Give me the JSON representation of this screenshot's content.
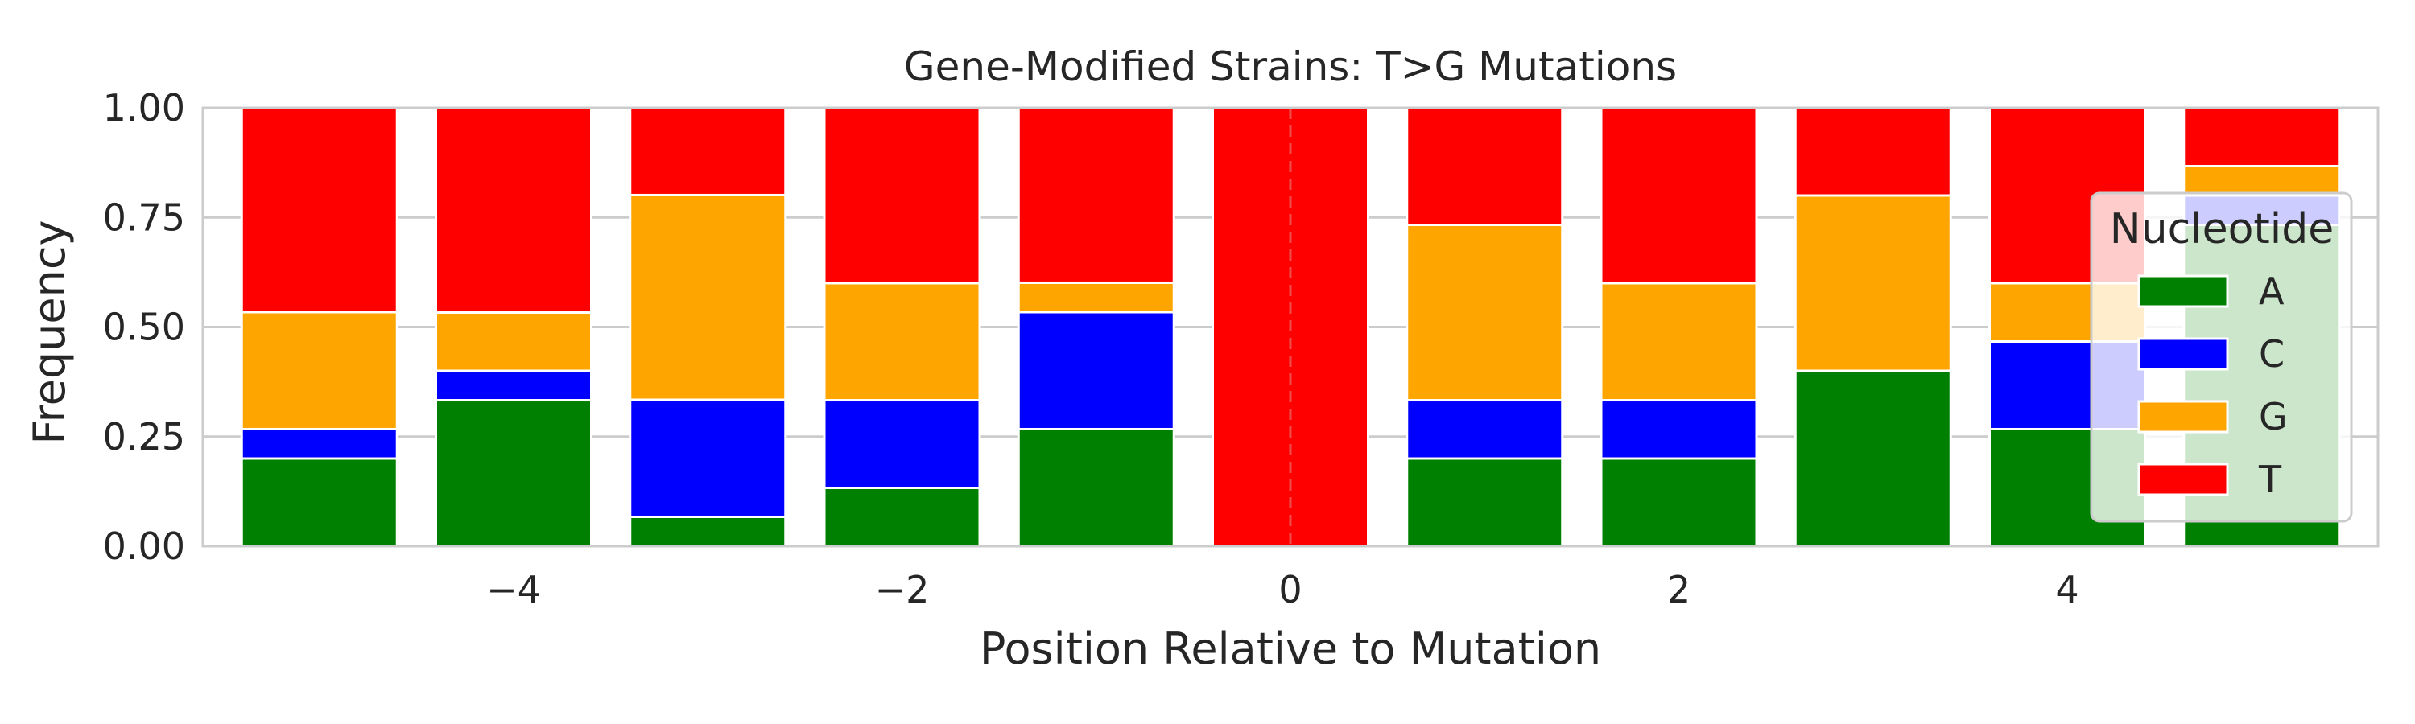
{
  "chart_data": {
    "type": "bar",
    "stacked": true,
    "title": "Gene-Modified Strains: T>G Mutations",
    "xlabel": "Position Relative to Mutation",
    "ylabel": "Frequency",
    "x": [
      -5,
      -4,
      -3,
      -2,
      -1,
      0,
      1,
      2,
      3,
      4,
      5
    ],
    "xlim": [
      -5.6,
      5.6
    ],
    "ylim": [
      0,
      1
    ],
    "xticks": [
      -4,
      -2,
      0,
      2,
      4
    ],
    "xtick_labels": [
      "−4",
      "−2",
      "0",
      "2",
      "4"
    ],
    "yticks": [
      0,
      0.25,
      0.5,
      0.75,
      1
    ],
    "ytick_labels": [
      "0.00",
      "0.25",
      "0.50",
      "0.75",
      "1.00"
    ],
    "grid": "horizontal",
    "reference_line": {
      "x": 0,
      "style": "dashed"
    },
    "series": [
      {
        "name": "A",
        "color": "#008000",
        "values": [
          0.2,
          0.333,
          0.067,
          0.133,
          0.267,
          0.0,
          0.2,
          0.2,
          0.4,
          0.267,
          0.733
        ]
      },
      {
        "name": "C",
        "color": "#0000ff",
        "values": [
          0.067,
          0.067,
          0.267,
          0.2,
          0.267,
          0.0,
          0.133,
          0.133,
          0.0,
          0.2,
          0.067
        ]
      },
      {
        "name": "G",
        "color": "#ffa500",
        "values": [
          0.267,
          0.133,
          0.467,
          0.267,
          0.067,
          0.0,
          0.4,
          0.267,
          0.4,
          0.133,
          0.067
        ]
      },
      {
        "name": "T",
        "color": "#ff0000",
        "values": [
          0.467,
          0.467,
          0.2,
          0.4,
          0.4,
          1.0,
          0.267,
          0.4,
          0.2,
          0.4,
          0.133
        ]
      }
    ],
    "legend": {
      "title": "Nucleotide",
      "placement": "right"
    }
  }
}
